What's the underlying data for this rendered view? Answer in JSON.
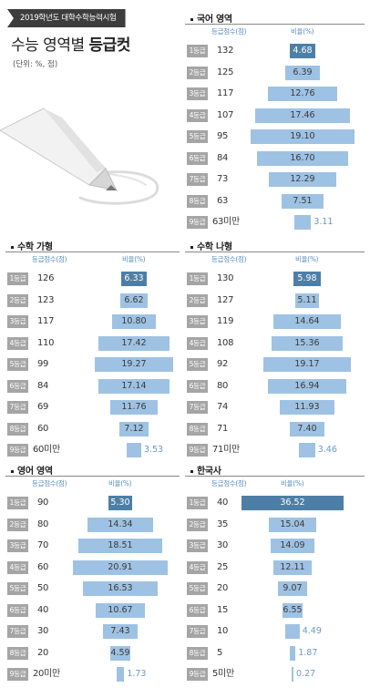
{
  "header": {
    "badge": "2019학년도 대학수학능력시험",
    "title_light": "수능 영역별 ",
    "title_bold": "등급컷",
    "unit": "(단위: %, 점)"
  },
  "colors": {
    "bar": "#9ec2e3",
    "bar_highlight": "#4d7fa6",
    "bar_text": "#3a3a3a",
    "small_bar_text": "#6a9ac8",
    "grade_box": "#a5a5a5",
    "header_badge": "#3d3d3d"
  },
  "chart_data": [
    {
      "type": "bar",
      "title": "국어 영역",
      "col_score": "등급점수(점)",
      "col_ratio": "비율(%)",
      "grades": [
        "1등급",
        "2등급",
        "3등급",
        "4등급",
        "5등급",
        "6등급",
        "7등급",
        "8등급",
        "9등급"
      ],
      "cutoffs": [
        "132",
        "125",
        "117",
        "107",
        "95",
        "84",
        "73",
        "63",
        "63미만"
      ],
      "values": [
        4.68,
        6.39,
        12.76,
        17.46,
        19.1,
        16.7,
        12.29,
        7.51,
        3.11
      ],
      "labels": [
        "4.68",
        "6.39",
        "12.76",
        "17.46",
        "19.10",
        "16.70",
        "12.29",
        "7.51",
        "3.11"
      ]
    },
    {
      "type": "bar",
      "title": "수학 가형",
      "col_score": "등급점수(점)",
      "col_ratio": "비율(%)",
      "grades": [
        "1등급",
        "2등급",
        "3등급",
        "4등급",
        "5등급",
        "6등급",
        "7등급",
        "8등급",
        "9등급"
      ],
      "cutoffs": [
        "126",
        "123",
        "117",
        "110",
        "99",
        "84",
        "69",
        "60",
        "60미만"
      ],
      "values": [
        6.33,
        6.62,
        10.8,
        17.42,
        19.27,
        17.14,
        11.76,
        7.12,
        3.53
      ],
      "labels": [
        "6.33",
        "6.62",
        "10.80",
        "17.42",
        "19.27",
        "17.14",
        "11.76",
        "7.12",
        "3.53"
      ]
    },
    {
      "type": "bar",
      "title": "수학 나형",
      "col_score": "등급점수(점)",
      "col_ratio": "비율(%)",
      "grades": [
        "1등급",
        "2등급",
        "3등급",
        "4등급",
        "5등급",
        "6등급",
        "7등급",
        "8등급",
        "9등급"
      ],
      "cutoffs": [
        "130",
        "127",
        "119",
        "108",
        "92",
        "80",
        "74",
        "71",
        "71미만"
      ],
      "values": [
        5.98,
        5.11,
        14.64,
        15.36,
        19.17,
        16.94,
        11.93,
        7.4,
        3.46
      ],
      "labels": [
        "5.98",
        "5.11",
        "14.64",
        "15.36",
        "19.17",
        "16.94",
        "11.93",
        "7.40",
        "3.46"
      ]
    },
    {
      "type": "bar",
      "title": "영어 영역",
      "col_score": "등급점수(점)",
      "col_ratio": "비율(%)",
      "grades": [
        "1등급",
        "2등급",
        "3등급",
        "4등급",
        "5등급",
        "6등급",
        "7등급",
        "8등급",
        "9등급"
      ],
      "cutoffs": [
        "90",
        "80",
        "70",
        "60",
        "50",
        "40",
        "30",
        "20",
        "20미만"
      ],
      "values": [
        5.3,
        14.34,
        18.51,
        20.91,
        16.53,
        10.67,
        7.43,
        4.59,
        1.73
      ],
      "labels": [
        "5.30",
        "14.34",
        "18.51",
        "20.91",
        "16.53",
        "10.67",
        "7.43",
        "4.59",
        "1.73"
      ]
    },
    {
      "type": "bar",
      "title": "한국사",
      "col_score": "등급점수(점)",
      "col_ratio": "비율(%)",
      "grades": [
        "1등급",
        "2등급",
        "3등급",
        "4등급",
        "5등급",
        "6등급",
        "7등급",
        "8등급",
        "9등급"
      ],
      "cutoffs": [
        "40",
        "35",
        "30",
        "25",
        "20",
        "15",
        "10",
        "5",
        "5미만"
      ],
      "values": [
        36.52,
        15.04,
        14.09,
        12.11,
        9.07,
        6.55,
        4.49,
        1.87,
        0.27
      ],
      "labels": [
        "36.52",
        "15.04",
        "14.09",
        "12.11",
        "9.07",
        "6.55",
        "4.49",
        "1.87",
        "0.27"
      ]
    }
  ]
}
